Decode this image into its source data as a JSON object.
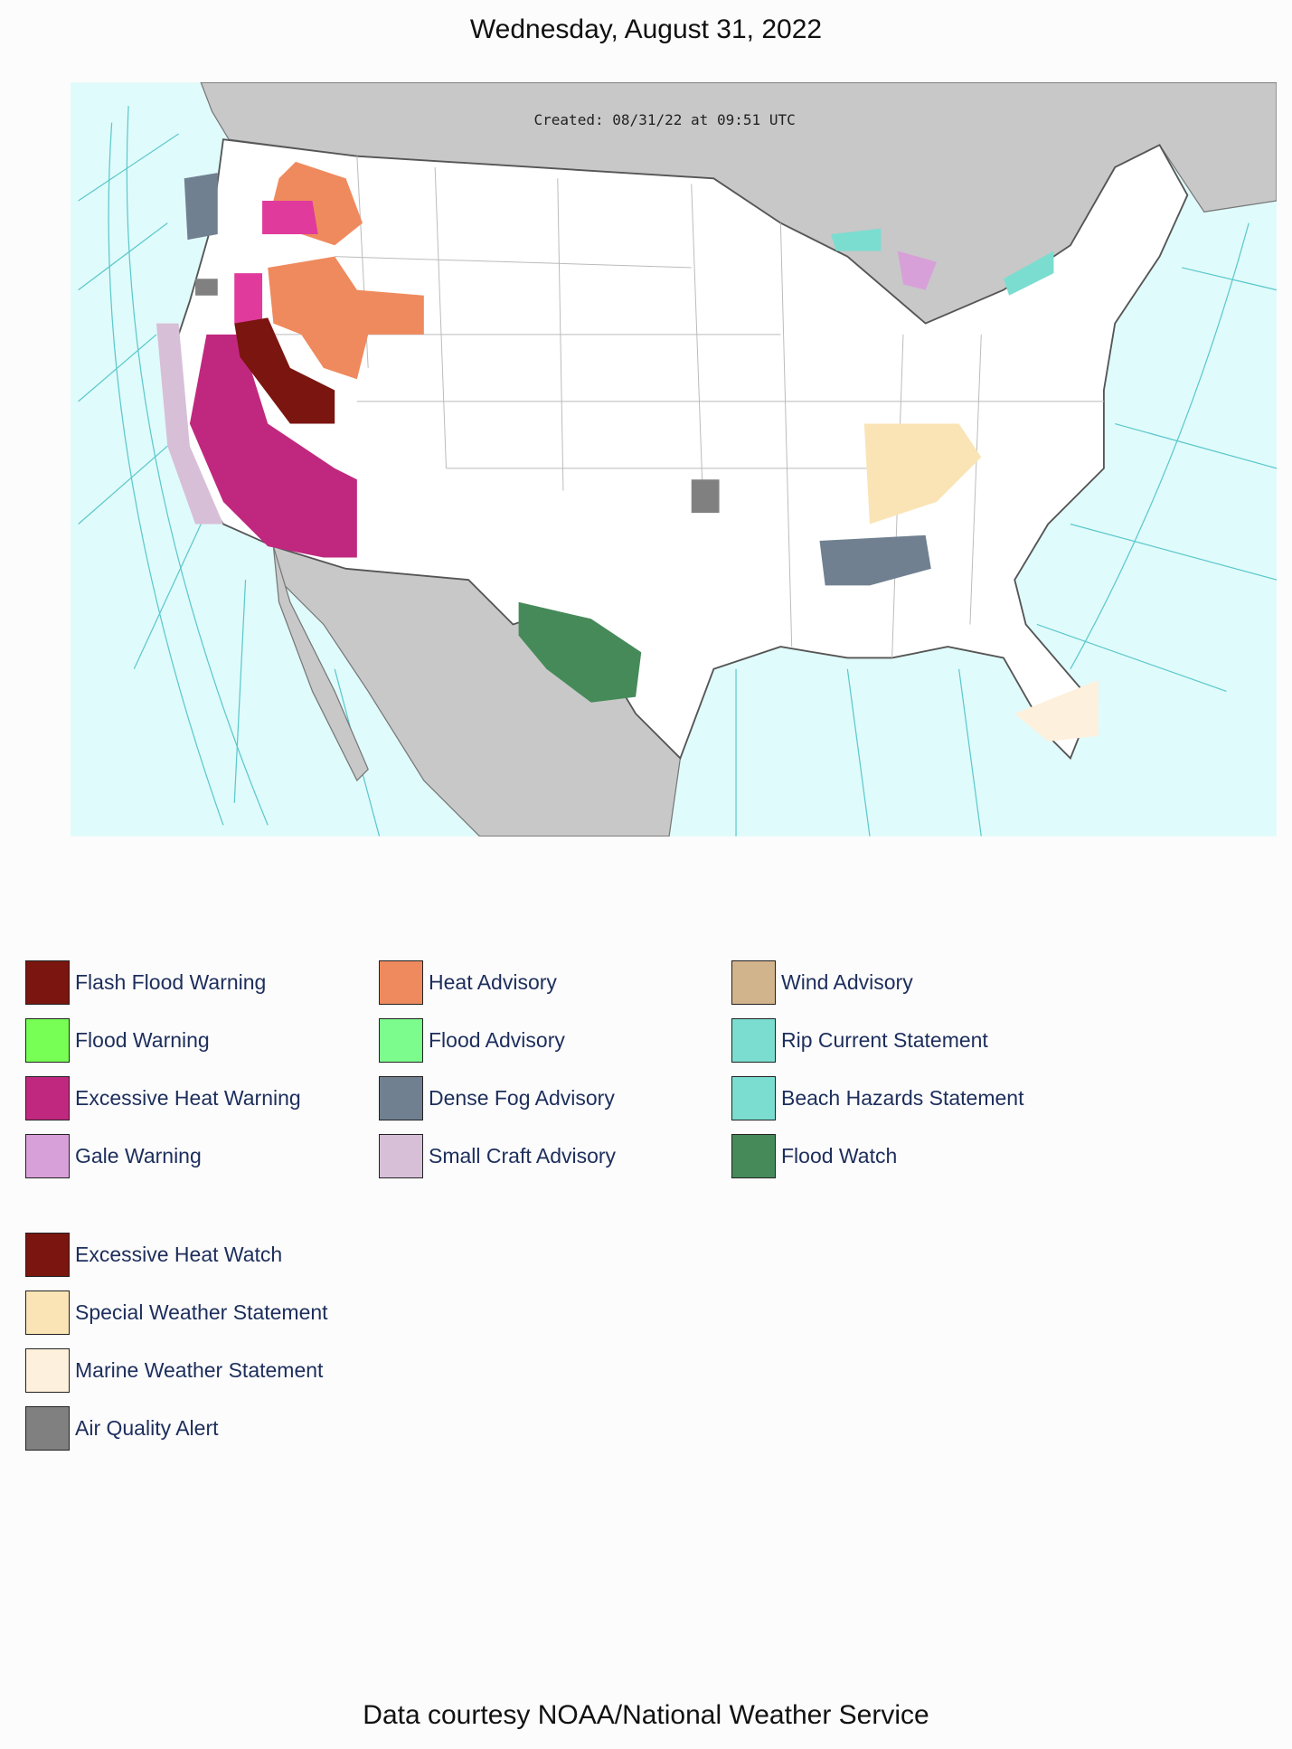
{
  "header": {
    "title": "Wednesday, August 31, 2022"
  },
  "map": {
    "created": "Created: 08/31/22 at 09:51 UTC"
  },
  "legend_sections": [
    {
      "columns": [
        [
          {
            "label": "Flash Flood Warning",
            "color": "#7b1510"
          },
          {
            "label": "Flood Warning",
            "color": "#77ff55"
          },
          {
            "label": "Excessive Heat Warning",
            "color": "#c0287f"
          },
          {
            "label": "Gale Warning",
            "color": "#d8a0d8"
          }
        ],
        [
          {
            "label": "Heat Advisory",
            "color": "#ef8a5e"
          },
          {
            "label": "Flood Advisory",
            "color": "#7cfc8c"
          },
          {
            "label": "Dense Fog Advisory",
            "color": "#708090"
          },
          {
            "label": "Small Craft Advisory",
            "color": "#d8bfd8"
          }
        ],
        [
          {
            "label": "Wind Advisory",
            "color": "#d2b48c"
          },
          {
            "label": "Rip Current Statement",
            "color": "#7bddd0"
          },
          {
            "label": "Beach Hazards Statement",
            "color": "#7bddd0"
          },
          {
            "label": "Flood Watch",
            "color": "#468a5a"
          }
        ]
      ]
    },
    {
      "columns": [
        [
          {
            "label": "Excessive Heat Watch",
            "color": "#7b1510"
          },
          {
            "label": "Special Weather Statement",
            "color": "#fae4b5"
          },
          {
            "label": "Marine Weather Statement",
            "color": "#fdf0dc"
          },
          {
            "label": "Air Quality Alert",
            "color": "#808080"
          }
        ]
      ]
    }
  ],
  "footer": {
    "text": "Data courtesy NOAA/National Weather Service"
  }
}
